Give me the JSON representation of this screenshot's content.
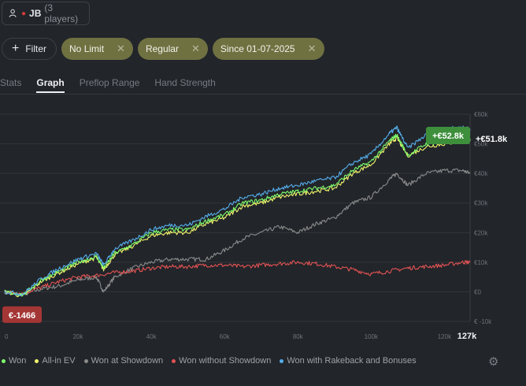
{
  "player": {
    "name": "JB",
    "count_label": "(3 players)"
  },
  "filters": {
    "filter_label": "Filter",
    "pills": [
      "No Limit",
      "Regular",
      "Since 01-07-2025"
    ]
  },
  "tabs": [
    "Stats",
    "Graph",
    "Preflop Range",
    "Hand Strength"
  ],
  "active_tab": "Graph",
  "colors": {
    "won": "#7dfc6c",
    "allin_ev": "#f0f56a",
    "showdown": "#8b8b8b",
    "non_showdown": "#e05252",
    "rakeback": "#55aeeb",
    "badge_green": "#3e8f3c",
    "badge_red": "#a43636"
  },
  "chart_data": {
    "type": "line",
    "x_ticks": [
      "0",
      "20k",
      "40k",
      "60k",
      "80k",
      "100k",
      "120k"
    ],
    "x_end_label": "127k",
    "xlim": [
      0,
      127000
    ],
    "y_ticks": [
      "€60k",
      "€50k",
      "€40k",
      "€30k",
      "€20k",
      "€10k",
      "€0",
      "€ -10k"
    ],
    "ylim": [
      -10000,
      60000
    ],
    "series": [
      {
        "name": "Won",
        "color_key": "won",
        "x": [
          0,
          5000,
          10000,
          15000,
          20000,
          25000,
          27000,
          30000,
          35000,
          40000,
          45000,
          50000,
          55000,
          60000,
          65000,
          70000,
          75000,
          80000,
          85000,
          90000,
          95000,
          100000,
          105000,
          107000,
          110000,
          115000,
          120000,
          125000,
          127000
        ],
        "y": [
          0,
          -1000,
          4000,
          7000,
          10000,
          12000,
          8000,
          13000,
          16000,
          20000,
          21000,
          21000,
          24000,
          26000,
          30000,
          31000,
          33000,
          34000,
          35000,
          36000,
          41000,
          44000,
          51000,
          53000,
          46000,
          50000,
          51000,
          51000,
          51800
        ]
      },
      {
        "name": "All-in EV",
        "color_key": "allin_ev",
        "x": [
          0,
          5000,
          10000,
          15000,
          20000,
          25000,
          27000,
          30000,
          35000,
          40000,
          45000,
          50000,
          55000,
          60000,
          65000,
          70000,
          75000,
          80000,
          85000,
          90000,
          95000,
          100000,
          105000,
          107000,
          110000,
          115000,
          120000,
          125000,
          127000
        ],
        "y": [
          0,
          -1500,
          3500,
          6500,
          9500,
          11500,
          7500,
          12500,
          15500,
          19000,
          20000,
          20000,
          23000,
          25000,
          29000,
          30000,
          32000,
          33000,
          34000,
          35000,
          40000,
          43000,
          50000,
          52000,
          46000,
          49000,
          50000,
          51000,
          51000
        ]
      },
      {
        "name": "Won at Showdown",
        "color_key": "showdown",
        "x": [
          0,
          5000,
          10000,
          15000,
          20000,
          25000,
          27000,
          30000,
          35000,
          40000,
          45000,
          50000,
          55000,
          60000,
          65000,
          70000,
          75000,
          80000,
          85000,
          90000,
          95000,
          100000,
          105000,
          107000,
          110000,
          115000,
          120000,
          125000,
          127000
        ],
        "y": [
          0,
          -1000,
          1000,
          2000,
          4000,
          5000,
          0,
          5000,
          8000,
          10000,
          11000,
          11000,
          11000,
          14000,
          18000,
          20000,
          22000,
          20000,
          23000,
          25000,
          30000,
          32000,
          38000,
          40000,
          36000,
          40000,
          41000,
          41000,
          40000
        ]
      },
      {
        "name": "Won without Showdown",
        "color_key": "non_showdown",
        "x": [
          0,
          5000,
          10000,
          15000,
          20000,
          25000,
          30000,
          35000,
          40000,
          45000,
          50000,
          55000,
          60000,
          65000,
          70000,
          75000,
          80000,
          85000,
          90000,
          95000,
          100000,
          105000,
          110000,
          115000,
          120000,
          125000,
          127000
        ],
        "y": [
          0,
          -500,
          1500,
          3500,
          5000,
          5500,
          6500,
          7000,
          8000,
          8500,
          8500,
          9000,
          9000,
          8500,
          9000,
          9500,
          10000,
          9500,
          8500,
          7500,
          6000,
          7000,
          8000,
          8500,
          9000,
          10000,
          10000
        ]
      },
      {
        "name": "Won with Rakeback and Bonuses",
        "color_key": "rakeback",
        "x": [
          0,
          5000,
          10000,
          15000,
          20000,
          25000,
          27000,
          30000,
          35000,
          40000,
          45000,
          50000,
          55000,
          60000,
          65000,
          70000,
          75000,
          80000,
          85000,
          90000,
          95000,
          100000,
          105000,
          107000,
          110000,
          115000,
          120000,
          125000,
          127000
        ],
        "y": [
          0,
          -800,
          4500,
          8000,
          11000,
          13000,
          9000,
          14500,
          17500,
          21000,
          22500,
          22500,
          25500,
          28000,
          32000,
          33000,
          35000,
          36000,
          37500,
          38500,
          43500,
          46500,
          53500,
          55500,
          48500,
          53000,
          55000,
          55500,
          55000
        ]
      }
    ],
    "end_labels": [
      {
        "text": "+€51.8k",
        "value": 51800
      },
      {
        "text": "+€52.8k",
        "value": 52800
      }
    ],
    "min_label": {
      "text": "€-1466",
      "value": -1466
    }
  }
}
